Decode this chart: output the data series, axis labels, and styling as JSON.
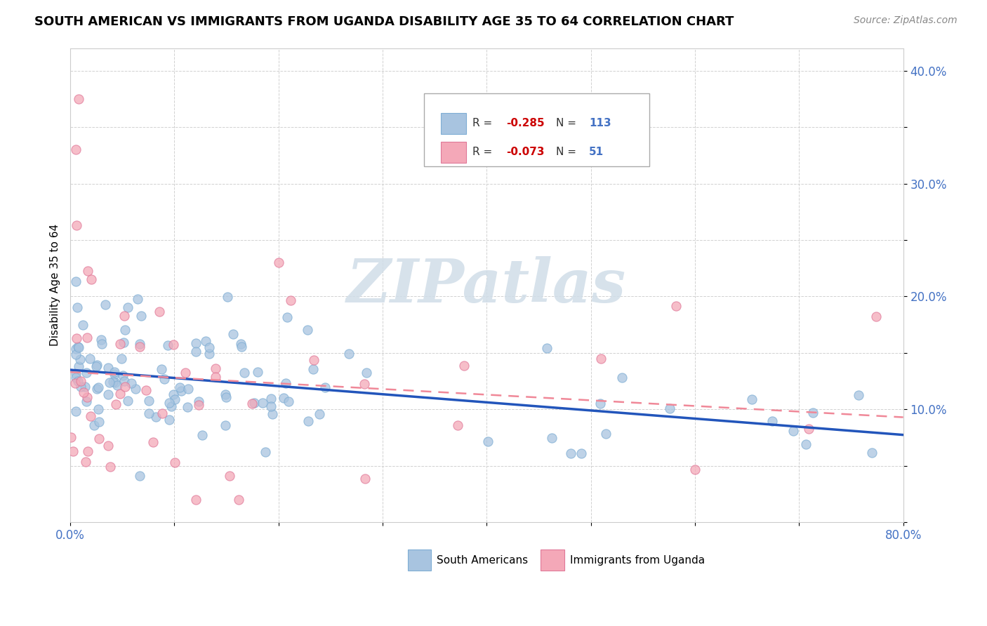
{
  "title": "SOUTH AMERICAN VS IMMIGRANTS FROM UGANDA DISABILITY AGE 35 TO 64 CORRELATION CHART",
  "source": "Source: ZipAtlas.com",
  "ylabel": "Disability Age 35 to 64",
  "xlim": [
    0.0,
    0.8
  ],
  "ylim": [
    0.0,
    0.42
  ],
  "xtick_positions": [
    0.0,
    0.1,
    0.2,
    0.3,
    0.4,
    0.5,
    0.6,
    0.7,
    0.8
  ],
  "xtick_labels": [
    "0.0%",
    "",
    "",
    "",
    "",
    "",
    "",
    "",
    "80.0%"
  ],
  "ytick_positions": [
    0.0,
    0.05,
    0.1,
    0.15,
    0.2,
    0.25,
    0.3,
    0.35,
    0.4
  ],
  "ytick_labels": [
    "",
    "",
    "10.0%",
    "",
    "20.0%",
    "",
    "30.0%",
    "",
    "40.0%"
  ],
  "series1_color": "#a8c4e0",
  "series1_edge": "#7faed4",
  "series2_color": "#f4a8b8",
  "series2_edge": "#e07898",
  "line1_color": "#2255bb",
  "line2_color": "#f08898",
  "legend_R1": "-0.285",
  "legend_N1": "113",
  "legend_R2": "-0.073",
  "legend_N2": "51",
  "watermark": "ZIPatlas",
  "background_color": "#ffffff",
  "line1_intercept": 0.135,
  "line1_slope": -0.072,
  "line2_intercept": 0.133,
  "line2_slope": -0.05
}
